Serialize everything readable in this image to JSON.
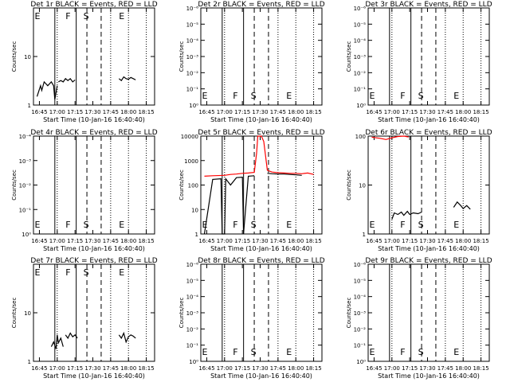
{
  "chart_data": [
    {
      "id": "det1",
      "title": "Det 1r BLACK = Events, RED = LLD",
      "type": "line",
      "ylabel": "Counts/sec",
      "xlabel": "Start Time (10-Jan-16 16:40:40)",
      "y_scale": "log",
      "y_ticks": [
        "1",
        "10"
      ],
      "x_ticks": [
        "16:45",
        "17:00",
        "17:15",
        "17:30",
        "17:45",
        "18:00",
        "18:15"
      ],
      "markers": [
        "E",
        "F",
        "S",
        "E"
      ],
      "series": [
        {
          "color": "#000000",
          "segments": [
            {
              "x": [
                "16:43",
                "16:46",
                "16:47",
                "16:49",
                "16:52",
                "16:55",
                "16:57",
                "16:58",
                "17:00"
              ],
              "y": [
                1.5,
                2.5,
                2.0,
                3.0,
                2.5,
                3.0,
                2.5,
                1.3,
                2.5
              ]
            },
            {
              "x": [
                "17:01",
                "17:03",
                "17:05",
                "17:07",
                "17:09",
                "17:11",
                "17:13",
                "17:15"
              ],
              "y": [
                3.0,
                3.2,
                3.0,
                3.5,
                3.2,
                3.5,
                3.0,
                3.3
              ]
            },
            {
              "x": [
                "17:52",
                "17:54",
                "17:56",
                "17:58",
                "18:00",
                "18:02",
                "18:04",
                "18:06"
              ],
              "y": [
                3.5,
                3.2,
                3.8,
                3.5,
                3.4,
                3.7,
                3.5,
                3.3
              ]
            }
          ]
        }
      ]
    },
    {
      "id": "det2",
      "title": "Det 2r BLACK = Events, RED = LLD",
      "type": "line",
      "ylabel": "Counts/sec",
      "xlabel": "Start Time (10-Jan-16 16:40:40)",
      "y_scale": "log",
      "y_ticks": [
        "10⁰",
        "10⁻¹",
        "10⁻²",
        "10⁻³",
        "10⁻⁴",
        "10⁻⁵",
        "10⁻⁶"
      ],
      "x_ticks": [
        "16:45",
        "17:00",
        "17:15",
        "17:30",
        "17:45",
        "18:00",
        "18:15"
      ],
      "markers": [
        "E",
        "F",
        "S",
        "E"
      ],
      "series": []
    },
    {
      "id": "det3",
      "title": "Det 3r BLACK = Events, RED = LLD",
      "type": "line",
      "ylabel": "Counts/sec",
      "xlabel": "Start Time (10-Jan-16 16:40:40)",
      "y_scale": "log",
      "y_ticks": [
        "10⁰",
        "10⁻¹",
        "10⁻²",
        "10⁻³",
        "10⁻⁴",
        "10⁻⁵",
        "10⁻⁶"
      ],
      "x_ticks": [
        "16:45",
        "17:00",
        "17:15",
        "17:30",
        "17:45",
        "18:00",
        "18:15"
      ],
      "markers": [
        "E",
        "F",
        "S",
        "E"
      ],
      "series": []
    },
    {
      "id": "det4",
      "title": "Det 4r BLACK = Events, RED = LLD",
      "type": "line",
      "ylabel": "Counts/sec",
      "xlabel": "Start Time (10-Jan-16 16:40:40)",
      "y_scale": "log",
      "y_ticks": [
        "10⁰",
        "10⁻¹",
        "10⁻²",
        "10⁻³",
        "10⁻⁴"
      ],
      "x_ticks": [
        "16:45",
        "17:00",
        "17:15",
        "17:30",
        "17:45",
        "18:00",
        "18:15"
      ],
      "markers": [
        "E",
        "F",
        "S",
        "E"
      ],
      "series": []
    },
    {
      "id": "det5",
      "title": "Det 5r BLACK = Events, RED = LLD",
      "type": "line",
      "ylabel": "Counts/sec",
      "xlabel": "Start Time (10-Jan-16 16:40:40)",
      "y_scale": "log",
      "y_ticks": [
        "1",
        "10",
        "100",
        "1000",
        "10000"
      ],
      "x_ticks": [
        "16:45",
        "17:00",
        "17:15",
        "17:30",
        "17:45",
        "18:00",
        "18:15"
      ],
      "markers": [
        "E",
        "F",
        "S",
        "E"
      ],
      "series": [
        {
          "color": "#ff0000",
          "segments": [
            {
              "x": [
                "16:43",
                "16:50",
                "17:00",
                "17:05",
                "17:10",
                "17:15",
                "17:20",
                "17:25",
                "17:27",
                "17:28",
                "17:29",
                "17:31",
                "17:33",
                "17:36",
                "17:40",
                "17:45",
                "17:50",
                "17:55",
                "18:00",
                "18:05",
                "18:10",
                "18:15"
              ],
              "y": [
                230,
                240,
                250,
                270,
                280,
                300,
                310,
                330,
                2000,
                10000,
                10000,
                10000,
                6000,
                400,
                340,
                320,
                310,
                300,
                300,
                290,
                310,
                270
              ]
            }
          ]
        },
        {
          "color": "#000000",
          "segments": [
            {
              "x": [
                "16:43",
                "16:50",
                "16:57",
                "16:58",
                "17:00",
                "17:01",
                "17:05",
                "17:10",
                "17:15",
                "17:16",
                "17:20",
                "17:25"
              ],
              "y": [
                1,
                170,
                180,
                1,
                1,
                180,
                100,
                200,
                210,
                1,
                230,
                240
              ]
            },
            {
              "x": [
                "17:36",
                "17:40",
                "17:45",
                "17:50",
                "17:55",
                "18:00",
                "18:05"
              ],
              "y": [
                300,
                290,
                280,
                280,
                270,
                260,
                250
              ]
            }
          ]
        }
      ]
    },
    {
      "id": "det6",
      "title": "Det 6r BLACK = Events, RED = LLD",
      "type": "line",
      "ylabel": "Counts/sec",
      "xlabel": "Start Time (10-Jan-16 16:40:40)",
      "y_scale": "log",
      "y_ticks": [
        "1",
        "10",
        "100"
      ],
      "x_ticks": [
        "16:45",
        "17:00",
        "17:15",
        "17:30",
        "17:45",
        "18:00",
        "18:15"
      ],
      "markers": [
        "E",
        "F",
        "S",
        "E"
      ],
      "series": [
        {
          "color": "#ff0000",
          "segments": [
            {
              "x": [
                "16:43",
                "16:50",
                "16:55",
                "17:00",
                "17:05",
                "17:10",
                "17:14"
              ],
              "y": [
                95,
                90,
                85,
                92,
                98,
                100,
                96
              ]
            }
          ]
        },
        {
          "color": "#000000",
          "segments": [
            {
              "x": [
                "17:00",
                "17:02",
                "17:05",
                "17:08",
                "17:10",
                "17:13",
                "17:15",
                "17:18",
                "17:22",
                "17:25"
              ],
              "y": [
                2.0,
                2.7,
                2.5,
                2.8,
                2.4,
                2.9,
                2.5,
                2.7,
                2.6,
                2.8
              ]
            },
            {
              "x": [
                "17:52",
                "17:55",
                "17:58",
                "18:00",
                "18:03",
                "18:06"
              ],
              "y": [
                3.5,
                4.5,
                3.8,
                3.3,
                3.8,
                3.2
              ]
            }
          ]
        }
      ]
    },
    {
      "id": "det7",
      "title": "Det 7r BLACK = Events, RED = LLD",
      "type": "line",
      "ylabel": "Counts/sec",
      "xlabel": "Start Time (10-Jan-16 16:40:40)",
      "y_scale": "log",
      "y_ticks": [
        "1",
        "10"
      ],
      "x_ticks": [
        "16:45",
        "17:00",
        "17:15",
        "17:30",
        "17:45",
        "18:00",
        "18:15"
      ],
      "markers": [
        "E",
        "F",
        "S",
        "E"
      ],
      "series": [
        {
          "color": "#000000",
          "segments": [
            {
              "x": [
                "16:55",
                "16:57",
                "16:59",
                "17:00",
                "17:01",
                "17:03",
                "17:05"
              ],
              "y": [
                2.0,
                2.5,
                1.8,
                3.5,
                2.4,
                3.0,
                2.0
              ]
            },
            {
              "x": [
                "17:07",
                "17:09",
                "17:11",
                "17:13",
                "17:15",
                "17:17"
              ],
              "y": [
                3.5,
                3.0,
                3.8,
                3.2,
                3.5,
                3.0
              ]
            },
            {
              "x": [
                "17:52",
                "17:54",
                "17:56",
                "17:58",
                "18:00",
                "18:02",
                "18:04",
                "18:06"
              ],
              "y": [
                3.5,
                3.0,
                3.8,
                2.5,
                3.2,
                3.5,
                3.3,
                3.0
              ]
            }
          ]
        }
      ]
    },
    {
      "id": "det8",
      "title": "Det 8r BLACK = Events, RED = LLD",
      "type": "line",
      "ylabel": "Counts/sec",
      "xlabel": "Start Time (10-Jan-16 16:40:40)",
      "y_scale": "log",
      "y_ticks": [
        "10⁰",
        "10⁻¹",
        "10⁻²",
        "10⁻³",
        "10⁻⁴",
        "10⁻⁵",
        "10⁻⁶"
      ],
      "x_ticks": [
        "16:45",
        "17:00",
        "17:15",
        "17:30",
        "17:45",
        "18:00",
        "18:15"
      ],
      "markers": [
        "E",
        "F",
        "S",
        "E"
      ],
      "series": []
    },
    {
      "id": "det9",
      "title": "Det 9r BLACK = Events, RED = LLD",
      "type": "line",
      "ylabel": "Counts/sec",
      "xlabel": "Start Time (10-Jan-16 16:40:40)",
      "y_scale": "log",
      "y_ticks": [
        "10⁰",
        "10⁻¹",
        "10⁻²",
        "10⁻³",
        "10⁻⁴",
        "10⁻⁵",
        "10⁻⁶"
      ],
      "x_ticks": [
        "16:45",
        "17:00",
        "17:15",
        "17:30",
        "17:45",
        "18:00",
        "18:15"
      ],
      "markers": [
        "E",
        "F",
        "S",
        "E"
      ],
      "series": []
    }
  ]
}
